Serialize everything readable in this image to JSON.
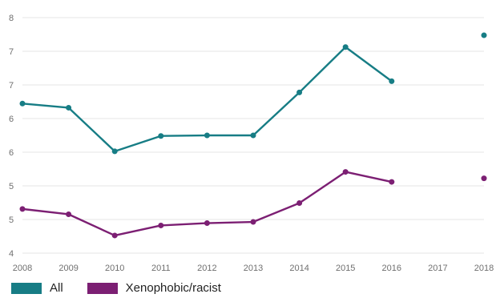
{
  "chart_data": {
    "type": "line",
    "title": "",
    "xlabel": "",
    "ylabel": "",
    "x": [
      "2008",
      "2009",
      "2010",
      "2011",
      "2012",
      "2013",
      "2014",
      "2015",
      "2016",
      "2017",
      "2018"
    ],
    "y_ticks": [
      "4",
      "5",
      "5",
      "6",
      "6",
      "7",
      "7",
      "8"
    ],
    "ylim": [
      4,
      8
    ],
    "grid": true,
    "legend_position": "bottom-left",
    "series": [
      {
        "name": "All",
        "color": "#177d85",
        "values": [
          6.54,
          6.47,
          5.73,
          5.99,
          6.0,
          6.0,
          6.73,
          7.5,
          6.92,
          null,
          7.7
        ]
      },
      {
        "name": "Xenophobic/racist",
        "color": "#7c1f73",
        "values": [
          4.75,
          4.66,
          4.3,
          4.47,
          4.51,
          4.53,
          4.85,
          5.38,
          5.21,
          null,
          5.27
        ]
      }
    ]
  }
}
